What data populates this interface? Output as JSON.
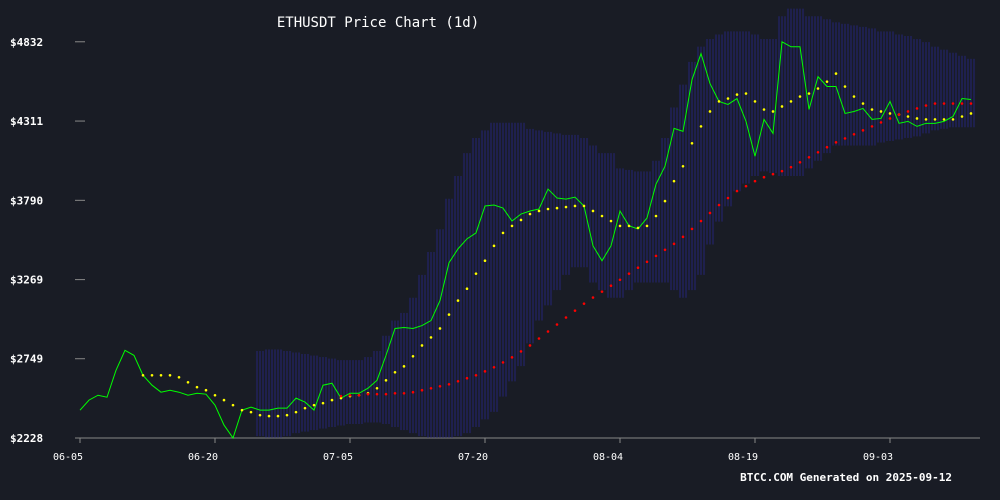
{
  "chart_data": {
    "type": "line",
    "title": "ETHUSDT Price Chart (1d)",
    "footer": "BTCC.COM Generated on 2025-09-12",
    "categories": [
      "06-05",
      null,
      null,
      null,
      null,
      null,
      null,
      null,
      null,
      null,
      null,
      null,
      null,
      null,
      null,
      "06-20",
      null,
      null,
      null,
      null,
      null,
      null,
      null,
      null,
      null,
      null,
      null,
      null,
      null,
      null,
      "07-05",
      null,
      null,
      null,
      null,
      null,
      null,
      null,
      null,
      null,
      null,
      null,
      null,
      null,
      null,
      "07-20",
      null,
      null,
      null,
      null,
      null,
      null,
      null,
      null,
      null,
      null,
      null,
      null,
      null,
      null,
      "08-04",
      null,
      null,
      null,
      null,
      null,
      null,
      null,
      null,
      null,
      null,
      null,
      null,
      null,
      null,
      "08-19",
      null,
      null,
      null,
      null,
      null,
      null,
      null,
      null,
      null,
      null,
      null,
      null,
      null,
      null,
      "09-03",
      null,
      null,
      null,
      null,
      null,
      null,
      null,
      null,
      null
    ],
    "series": [
      {
        "color": "#00ff00",
        "style": "line",
        "values": [
          2411,
          2477,
          2509,
          2496,
          2673,
          2804,
          2771,
          2640,
          2575,
          2529,
          2542,
          2529,
          2509,
          2522,
          2516,
          2444,
          2313,
          2228,
          2411,
          2431,
          2411,
          2411,
          2424,
          2424,
          2490,
          2464,
          2411,
          2575,
          2588,
          2490,
          2522,
          2522,
          2555,
          2607,
          2771,
          2948,
          2954,
          2948,
          2967,
          3000,
          3131,
          3380,
          3471,
          3537,
          3576,
          3753,
          3759,
          3739,
          3654,
          3700,
          3720,
          3733,
          3864,
          3805,
          3798,
          3811,
          3753,
          3491,
          3393,
          3491,
          3720,
          3622,
          3602,
          3674,
          3896,
          4014,
          4263,
          4243,
          4583,
          4754,
          4557,
          4440,
          4420,
          4459,
          4309,
          4080,
          4322,
          4230,
          4832,
          4799,
          4799,
          4387,
          4603,
          4538,
          4538,
          4361,
          4374,
          4394,
          4322,
          4328,
          4440,
          4296,
          4309,
          4276,
          4296,
          4296,
          4309,
          4341,
          4459,
          4453
        ]
      },
      {
        "color": "#ffff00",
        "style": "dots",
        "values": [
          null,
          null,
          null,
          null,
          null,
          null,
          null,
          2640,
          2640,
          2640,
          2640,
          2627,
          2594,
          2562,
          2542,
          2509,
          2477,
          2444,
          2411,
          2398,
          2378,
          2372,
          2372,
          2378,
          2398,
          2424,
          2444,
          2457,
          2477,
          2490,
          2503,
          2509,
          2522,
          2555,
          2607,
          2660,
          2699,
          2765,
          2836,
          2889,
          2948,
          3039,
          3131,
          3209,
          3308,
          3393,
          3491,
          3576,
          3622,
          3661,
          3700,
          3720,
          3733,
          3739,
          3746,
          3753,
          3753,
          3720,
          3687,
          3654,
          3622,
          3622,
          3609,
          3622,
          3687,
          3785,
          3916,
          4014,
          4165,
          4276,
          4374,
          4440,
          4459,
          4485,
          4492,
          4440,
          4387,
          4374,
          4407,
          4440,
          4472,
          4492,
          4525,
          4570,
          4623,
          4538,
          4472,
          4426,
          4387,
          4374,
          4361,
          4354,
          4341,
          4328,
          4322,
          4322,
          4322,
          4322,
          4341,
          4361
        ]
      },
      {
        "color": "#ff0000",
        "style": "dots",
        "values": [
          null,
          null,
          null,
          null,
          null,
          null,
          null,
          null,
          null,
          null,
          null,
          null,
          null,
          null,
          null,
          null,
          null,
          null,
          null,
          null,
          null,
          null,
          null,
          null,
          null,
          null,
          null,
          null,
          null,
          2503,
          2509,
          2509,
          2516,
          2516,
          2516,
          2522,
          2522,
          2529,
          2542,
          2555,
          2568,
          2581,
          2601,
          2621,
          2640,
          2666,
          2693,
          2725,
          2758,
          2797,
          2836,
          2882,
          2928,
          2974,
          3020,
          3065,
          3111,
          3151,
          3190,
          3229,
          3268,
          3308,
          3347,
          3386,
          3425,
          3465,
          3504,
          3550,
          3602,
          3654,
          3707,
          3759,
          3805,
          3851,
          3883,
          3916,
          3942,
          3962,
          3982,
          4008,
          4040,
          4073,
          4106,
          4139,
          4171,
          4197,
          4224,
          4250,
          4276,
          4302,
          4328,
          4354,
          4374,
          4394,
          4413,
          4426,
          4426,
          4426,
          4426,
          4426
        ]
      }
    ],
    "band": {
      "color": "#23236a",
      "upper": [
        null,
        null,
        null,
        null,
        null,
        null,
        null,
        null,
        null,
        null,
        null,
        null,
        null,
        null,
        null,
        null,
        null,
        null,
        null,
        null,
        2800,
        2810,
        2810,
        2800,
        2790,
        2780,
        2770,
        2760,
        2750,
        2740,
        2740,
        2740,
        2760,
        2800,
        2900,
        3000,
        3050,
        3150,
        3300,
        3450,
        3600,
        3800,
        3950,
        4100,
        4200,
        4250,
        4300,
        4300,
        4300,
        4300,
        4260,
        4250,
        4240,
        4230,
        4220,
        4220,
        4200,
        4150,
        4100,
        4100,
        4000,
        3990,
        3980,
        3980,
        4050,
        4200,
        4400,
        4550,
        4700,
        4800,
        4850,
        4880,
        4900,
        4900,
        4900,
        4880,
        4850,
        4850,
        5000,
        5050,
        5050,
        5000,
        5000,
        4980,
        4960,
        4950,
        4940,
        4930,
        4920,
        4900,
        4900,
        4880,
        4870,
        4850,
        4830,
        4800,
        4780,
        4760,
        4740,
        4720
      ],
      "lower": [
        null,
        null,
        null,
        null,
        null,
        null,
        null,
        null,
        null,
        null,
        null,
        null,
        null,
        null,
        null,
        null,
        null,
        null,
        null,
        null,
        2240,
        2230,
        2230,
        2240,
        2260,
        2270,
        2280,
        2290,
        2300,
        2310,
        2320,
        2320,
        2330,
        2330,
        2320,
        2300,
        2280,
        2260,
        2240,
        2230,
        2230,
        2230,
        2240,
        2260,
        2300,
        2350,
        2400,
        2500,
        2600,
        2700,
        2850,
        3000,
        3100,
        3200,
        3300,
        3350,
        3350,
        3250,
        3200,
        3150,
        3150,
        3200,
        3250,
        3250,
        3250,
        3250,
        3200,
        3150,
        3200,
        3300,
        3500,
        3650,
        3750,
        3850,
        3900,
        3950,
        3980,
        3970,
        3950,
        3950,
        3950,
        4000,
        4050,
        4100,
        4150,
        4150,
        4150,
        4150,
        4150,
        4170,
        4180,
        4190,
        4200,
        4210,
        4230,
        4250,
        4260,
        4270,
        4270,
        4270
      ]
    },
    "ylim": [
      2228,
      5100
    ],
    "yticks": [
      {
        "value": 2228,
        "label": "$2228"
      },
      {
        "value": 2749,
        "label": "$2749"
      },
      {
        "value": 3269,
        "label": "$3269"
      },
      {
        "value": 3790,
        "label": "$3790"
      },
      {
        "value": 4311,
        "label": "$4311"
      },
      {
        "value": 4832,
        "label": "$4832"
      }
    ]
  }
}
